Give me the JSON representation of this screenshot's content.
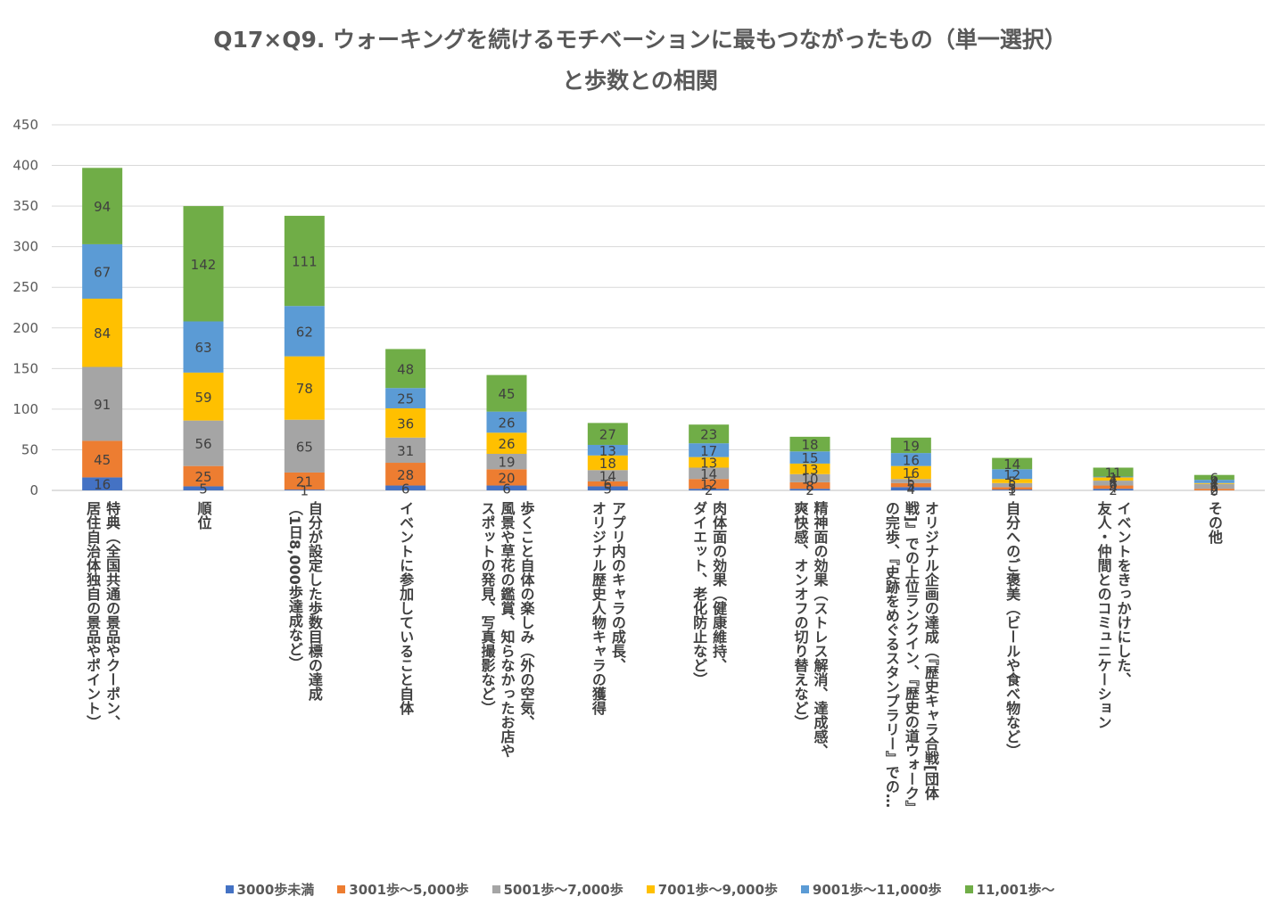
{
  "chart_data": {
    "type": "bar",
    "stacked": true,
    "title_lines": [
      "Q17×Q9. ウォーキングを続けるモチベーションに最もつながったもの（単一選択）",
      "と歩数との相関"
    ],
    "ylim": [
      0,
      450
    ],
    "yticks": [
      0,
      50,
      100,
      150,
      200,
      250,
      300,
      350,
      400,
      450
    ],
    "categories": [
      [
        "特典（全国共通の景品やクーポン、",
        "居住自治体独自の景品やポイント）"
      ],
      [
        "順位"
      ],
      [
        "自分が設定した歩数目標の達成",
        "（1日8,000歩達成など）"
      ],
      [
        "イベントに参加していること自体"
      ],
      [
        "歩くこと自体の楽しみ（外の空気、",
        "風景や草花の鑑賞、知らなかったお店や",
        "スポットの発見、写真撮影など）"
      ],
      [
        "アプリ内のキャラの成長、",
        "オリジナル歴史人物キャラの獲得"
      ],
      [
        "肉体面の効果（健康維持、",
        "ダイエット、老化防止など）"
      ],
      [
        "精神面の効果（ストレス解消、達成感、",
        "爽快感、オンオフの切り替えなど）"
      ],
      [
        "オリジナル企画の達成（『歴史キャラ合戦[団体",
        "戦]』での上位ランクイン、『歴史の道ウォーク』",
        "の完歩、『史跡をめぐるスタンプラリー』での…"
      ],
      [
        "自分へのご褒美（ビールや食べ物など）"
      ],
      [
        "イベントをきっかけにした、",
        "友人・仲間とのコミュニケーション"
      ],
      [
        "その他"
      ]
    ],
    "series": [
      {
        "name": "3000歩未満",
        "color": "#4472C4",
        "values": [
          16,
          5,
          1,
          6,
          6,
          5,
          2,
          2,
          4,
          1,
          2,
          0
        ]
      },
      {
        "name": "3001歩～5,000歩",
        "color": "#ED7D31",
        "values": [
          45,
          25,
          21,
          28,
          20,
          6,
          12,
          8,
          5,
          3,
          4,
          2
        ]
      },
      {
        "name": "5001歩～7,000歩",
        "color": "#A5A5A5",
        "values": [
          91,
          56,
          65,
          31,
          19,
          14,
          14,
          10,
          5,
          5,
          6,
          6
        ]
      },
      {
        "name": "7001歩～9,000歩",
        "color": "#FFC000",
        "values": [
          84,
          59,
          78,
          36,
          26,
          18,
          13,
          13,
          16,
          5,
          4,
          1
        ]
      },
      {
        "name": "9001歩～11,000歩",
        "color": "#5B9BD5",
        "values": [
          67,
          63,
          62,
          25,
          26,
          13,
          17,
          15,
          16,
          12,
          1,
          4
        ]
      },
      {
        "name": "11,001歩～",
        "color": "#70AD47",
        "values": [
          94,
          142,
          111,
          48,
          45,
          27,
          23,
          18,
          19,
          14,
          11,
          6
        ]
      }
    ]
  }
}
